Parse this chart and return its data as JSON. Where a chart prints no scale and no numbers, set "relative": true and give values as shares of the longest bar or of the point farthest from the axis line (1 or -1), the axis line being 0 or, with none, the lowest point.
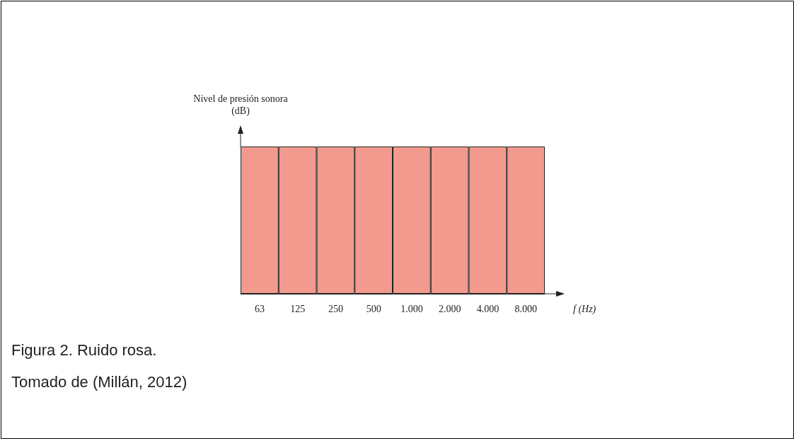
{
  "chart_data": {
    "type": "bar",
    "relative": true,
    "ylabel": "Nivel de presión sonora (dB)",
    "xlabel": "f (Hz)",
    "categories": [
      "63",
      "125",
      "250",
      "500",
      "1.000",
      "2.000",
      "4.000",
      "8.000"
    ],
    "series": [
      {
        "color": "#f29a8e",
        "values": [
          1,
          1,
          1,
          1,
          1,
          1,
          1,
          1
        ]
      }
    ],
    "annotations": [
      "Figura 2. Ruido rosa.",
      "Tomado de (Millán, 2012)"
    ],
    "grid": false
  }
}
